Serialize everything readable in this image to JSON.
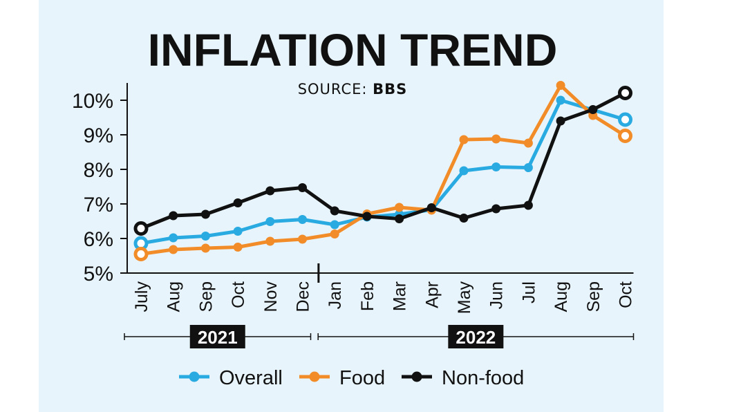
{
  "chart_data": {
    "type": "line",
    "title": "INFLATION TREND",
    "subtitle_prefix": "SOURCE: ",
    "subtitle_source": "BBS",
    "categories": [
      "July",
      "Aug",
      "Sep",
      "Oct",
      "Nov",
      "Dec",
      "Jan",
      "Feb",
      "Mar",
      "Apr",
      "May",
      "Jun",
      "Jul",
      "Aug",
      "Sep",
      "Oct"
    ],
    "y_ticks": [
      5,
      6,
      7,
      8,
      9,
      10
    ],
    "y_tick_labels": [
      "5%",
      "6%",
      "7%",
      "8%",
      "9%",
      "10%"
    ],
    "ylim": [
      5,
      10.5
    ],
    "years": [
      {
        "label": "2021",
        "start": 0,
        "end": 5
      },
      {
        "label": "2022",
        "start": 6,
        "end": 15
      }
    ],
    "grid": false,
    "legend_position": "bottom",
    "series": [
      {
        "name": "Overall",
        "color": "#29abe2",
        "values": [
          5.86,
          6.02,
          6.07,
          6.21,
          6.49,
          6.55,
          6.4,
          6.62,
          6.7,
          6.83,
          7.96,
          8.07,
          8.05,
          10.0,
          9.72,
          9.44
        ]
      },
      {
        "name": "Food",
        "color": "#f28c28",
        "values": [
          5.55,
          5.68,
          5.72,
          5.75,
          5.92,
          5.98,
          6.13,
          6.71,
          6.9,
          6.82,
          8.86,
          8.88,
          8.76,
          10.43,
          9.56,
          8.97
        ]
      },
      {
        "name": "Non-food",
        "color": "#111111",
        "values": [
          6.29,
          6.66,
          6.7,
          7.03,
          7.38,
          7.47,
          6.8,
          6.64,
          6.57,
          6.89,
          6.59,
          6.86,
          6.96,
          9.4,
          9.73,
          10.21
        ]
      }
    ]
  }
}
